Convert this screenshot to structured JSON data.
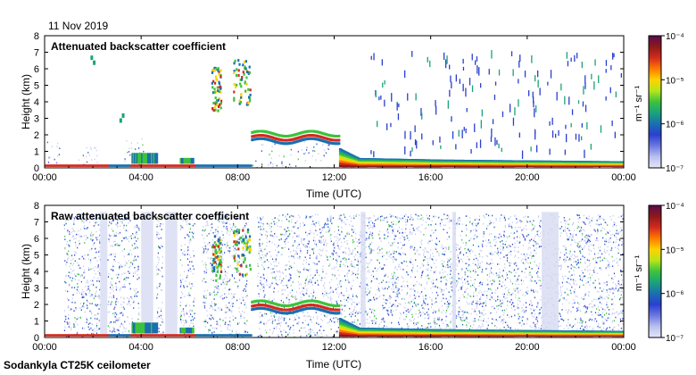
{
  "date_label": "11 Nov 2019",
  "footer": "Sodankyla CT25K ceilometer",
  "colorbar": {
    "unit": "m⁻¹ sr⁻¹",
    "ticks": [
      "10⁻⁴",
      "10⁻⁵",
      "10⁻⁶",
      "10⁻⁷"
    ],
    "colors": [
      "#5b0a4f",
      "#8b1a1a",
      "#d42a1f",
      "#ff7a00",
      "#ffd200",
      "#b6e61b",
      "#3cc23c",
      "#1aa37a",
      "#1a6fb0",
      "#2a3fd0",
      "#6b78e0",
      "#b9c0f0",
      "#e4e6f8"
    ]
  },
  "chart_data": [
    {
      "type": "heatmap",
      "title": "Attenuated backscatter coefficient",
      "xlabel": "Time (UTC)",
      "ylabel": "Height (km)",
      "x_ticks": [
        "00:00",
        "04:00",
        "08:00",
        "12:00",
        "16:00",
        "20:00",
        "00:00"
      ],
      "y_ticks": [
        "0",
        "1",
        "2",
        "3",
        "4",
        "5",
        "6",
        "7",
        "8"
      ],
      "ylim": [
        0,
        8
      ],
      "color_scale": "log",
      "clim": [
        "1e-7",
        "1e-4"
      ],
      "boundary_layer_top_km": [
        {
          "t": 0.0,
          "h": 0.2
        },
        {
          "t": 4.0,
          "h": 0.9
        },
        {
          "t": 8.5,
          "h": 1.8
        },
        {
          "t": 11.5,
          "h": 1.7
        },
        {
          "t": 13.0,
          "h": 0.6
        },
        {
          "t": 16.5,
          "h": 0.5
        },
        {
          "t": 24.0,
          "h": 0.4
        }
      ],
      "cloud_features": [
        {
          "t_start": 6.9,
          "t_end": 7.3,
          "h_low": 3.5,
          "h_high": 6.2
        },
        {
          "t_start": 7.8,
          "t_end": 8.5,
          "h_low": 3.8,
          "h_high": 6.6
        }
      ]
    },
    {
      "type": "heatmap",
      "title": "Raw attenuated backscatter coefficient",
      "xlabel": "Time (UTC)",
      "ylabel": "Height (km)",
      "x_ticks": [
        "00:00",
        "04:00",
        "08:00",
        "12:00",
        "16:00",
        "20:00",
        "00:00"
      ],
      "y_ticks": [
        "0",
        "1",
        "2",
        "3",
        "4",
        "5",
        "6",
        "7",
        "8"
      ],
      "ylim": [
        0,
        8
      ],
      "color_scale": "log",
      "clim": [
        "1e-7",
        "1e-4"
      ]
    }
  ]
}
